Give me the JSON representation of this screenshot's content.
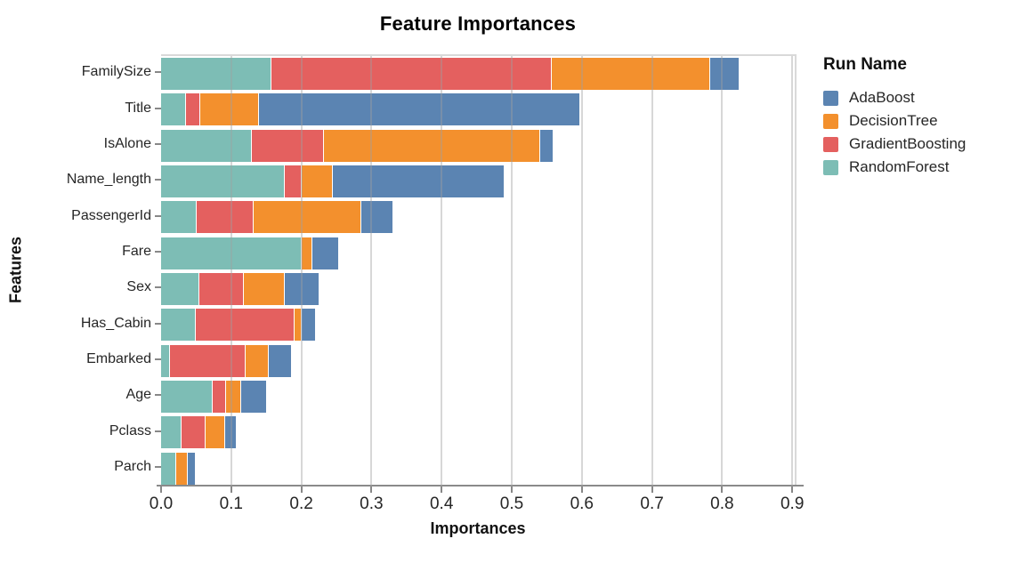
{
  "chart_data": {
    "type": "bar",
    "orientation": "horizontal",
    "stacked": true,
    "title": "Feature Importances",
    "xlabel": "Importances",
    "ylabel": "Features",
    "legend_title": "Run Name",
    "legend_position": "top-right",
    "grid": "vertical-only",
    "xlim": [
      0.0,
      0.9
    ],
    "x_ticks": [
      "0.0",
      "0.1",
      "0.2",
      "0.3",
      "0.4",
      "0.5",
      "0.6",
      "0.7",
      "0.8",
      "0.9"
    ],
    "x_tick_values": [
      0.0,
      0.1,
      0.2,
      0.3,
      0.4,
      0.5,
      0.6,
      0.7,
      0.8,
      0.9
    ],
    "categories": [
      "FamilySize",
      "Title",
      "IsAlone",
      "Name_length",
      "PassengerId",
      "Fare",
      "Sex",
      "Has_Cabin",
      "Embarked",
      "Age",
      "Pclass",
      "Parch"
    ],
    "stack_order_left_to_right": [
      "RandomForest",
      "GradientBoosting",
      "DecisionTree",
      "AdaBoost"
    ],
    "series": [
      {
        "name": "AdaBoost",
        "color": "#5b84b2",
        "values": [
          0.041,
          0.458,
          0.018,
          0.243,
          0.045,
          0.036,
          0.048,
          0.02,
          0.031,
          0.036,
          0.016,
          0.01
        ]
      },
      {
        "name": "DecisionTree",
        "color": "#f3902d",
        "values": [
          0.226,
          0.083,
          0.308,
          0.045,
          0.153,
          0.016,
          0.059,
          0.01,
          0.034,
          0.021,
          0.028,
          0.017
        ]
      },
      {
        "name": "GradientBoosting",
        "color": "#e4605f",
        "values": [
          0.4,
          0.021,
          0.102,
          0.024,
          0.081,
          0.0,
          0.064,
          0.14,
          0.107,
          0.02,
          0.034,
          0.0
        ]
      },
      {
        "name": "RandomForest",
        "color": "#7dbdb5",
        "values": [
          0.157,
          0.035,
          0.13,
          0.176,
          0.051,
          0.2,
          0.054,
          0.05,
          0.013,
          0.073,
          0.029,
          0.021
        ]
      }
    ],
    "totals": [
      0.824,
      0.597,
      0.558,
      0.488,
      0.33,
      0.252,
      0.225,
      0.22,
      0.185,
      0.15,
      0.107,
      0.048
    ]
  },
  "colors": {
    "gridline": "#d9d9d9",
    "axis_line": "#888888",
    "tick_text": "#262626",
    "title_text": "#000000"
  }
}
